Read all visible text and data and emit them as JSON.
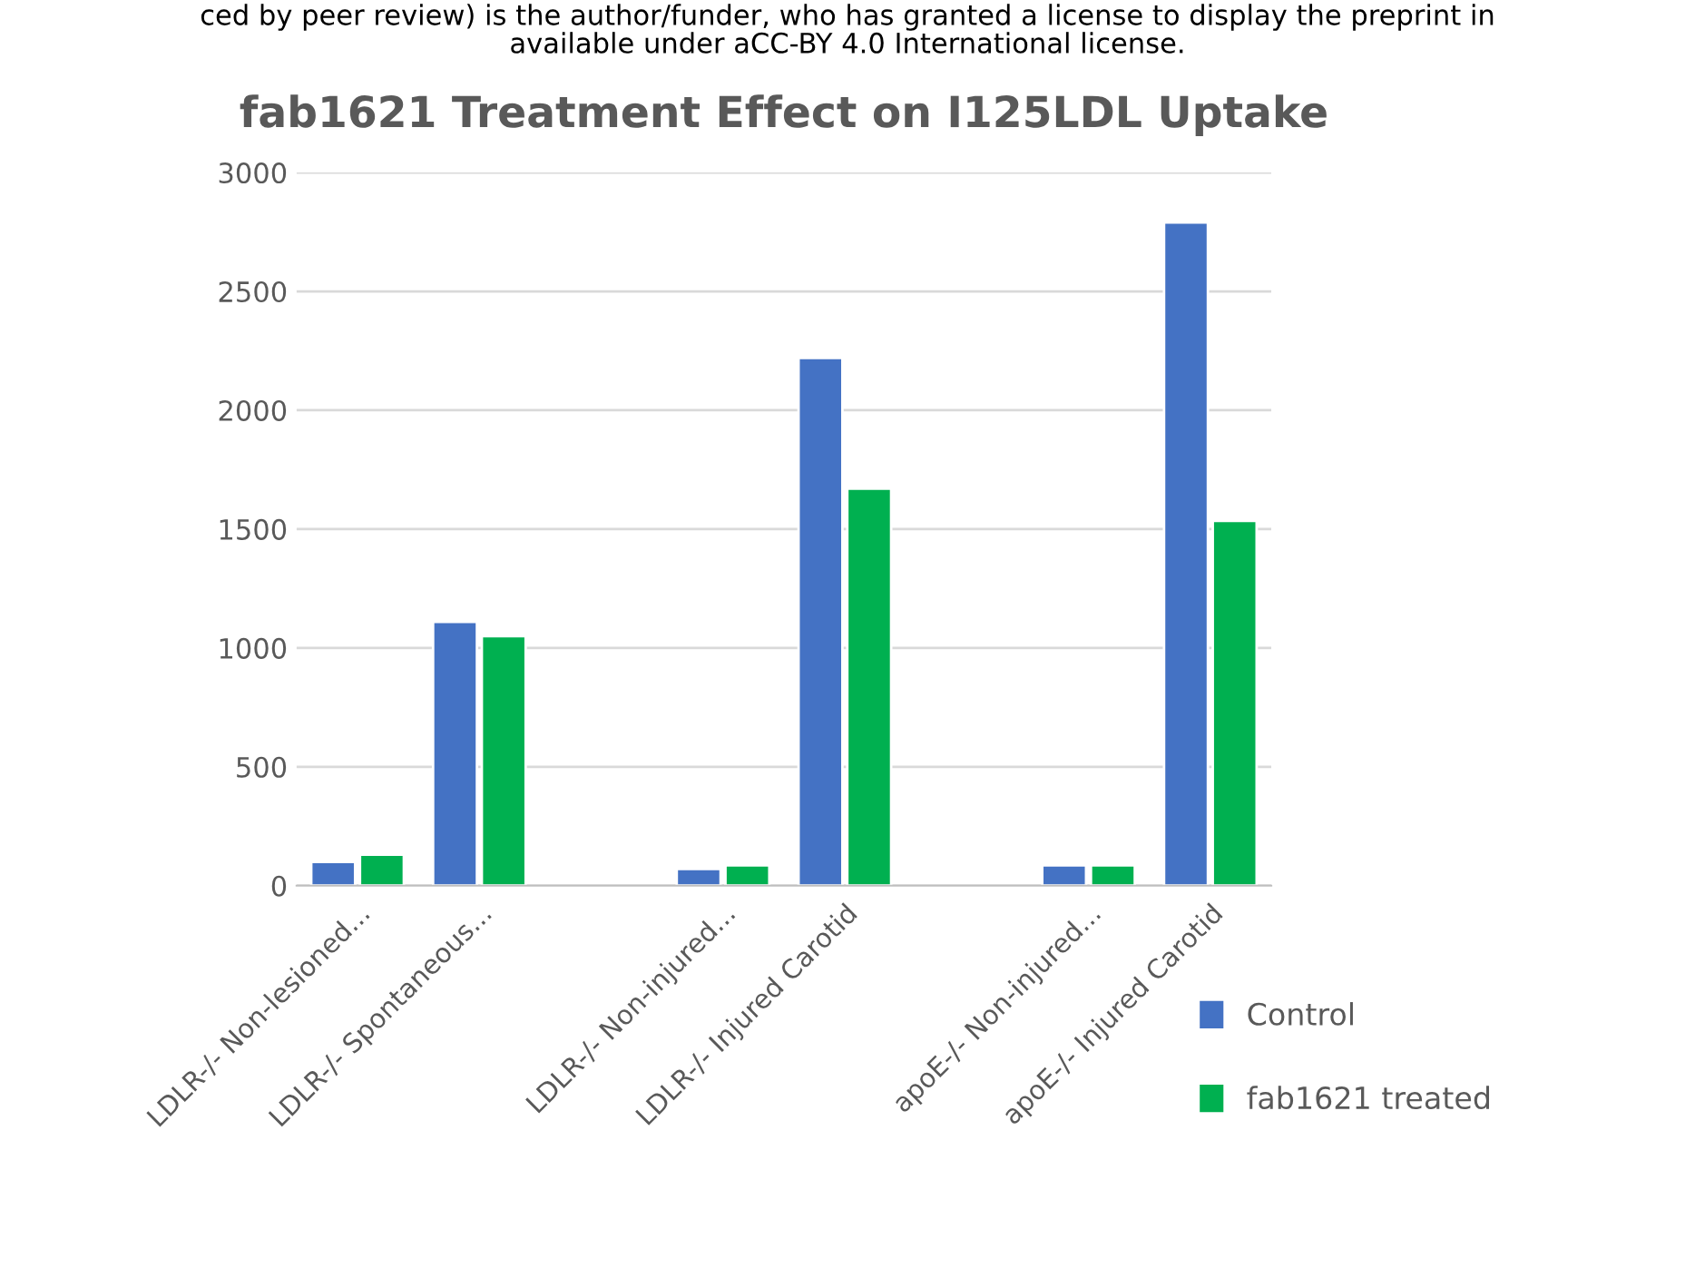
{
  "chart_data": {
    "type": "bar",
    "title": "fab1621 Treatment Effect on I125LDL Uptake",
    "annotations": [
      "ced by peer review) is the author/funder, who has granted a license to display the preprint in",
      "available under aCC-BY 4.0 International license."
    ],
    "categories": [
      "LDLR-/- Non-lesioned...",
      "LDLR-/- Spontaneous...",
      null,
      "LDLR-/- Non-injured...",
      "LDLR-/- Injured Carotid",
      null,
      "apoE-/- Non-injured...",
      "apoE-/- Injured Carotid"
    ],
    "series": [
      {
        "name": "Control",
        "color": "#4472c4",
        "values": [
          100,
          1110,
          null,
          70,
          2220,
          null,
          85,
          2790
        ]
      },
      {
        "name": "fab1621 treated",
        "color": "#00b050",
        "values": [
          130,
          1050,
          null,
          85,
          1670,
          null,
          85,
          1535
        ]
      }
    ],
    "ylim": [
      0,
      3000
    ],
    "yticks": [
      0,
      500,
      1000,
      1500,
      2000,
      2500,
      3000
    ],
    "grid": "y",
    "legend": "bottom right"
  }
}
